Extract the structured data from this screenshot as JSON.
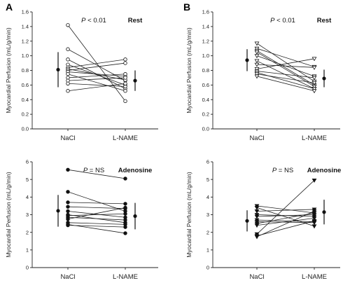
{
  "figure": {
    "panel_labels": [
      "A",
      "B"
    ]
  },
  "chart_data": [
    {
      "id": "A-rest",
      "panel": "A",
      "type": "scatter",
      "ylabel": "Myocardial Perfusion (mL/g/min)",
      "condition": "Rest",
      "p_italic": "P",
      "p_rest": " < 0.01",
      "categories": [
        "NaCl",
        "L-NAME"
      ],
      "ylim": [
        0,
        1.6
      ],
      "yticks": [
        0.0,
        0.2,
        0.4,
        0.6,
        0.8,
        1.0,
        1.2,
        1.4,
        1.6
      ],
      "marker": "circle-open",
      "pairs": [
        [
          1.42,
          0.38
        ],
        [
          1.09,
          0.66
        ],
        [
          0.95,
          0.55
        ],
        [
          0.88,
          0.6
        ],
        [
          0.84,
          0.95
        ],
        [
          0.82,
          0.67
        ],
        [
          0.8,
          0.9
        ],
        [
          0.78,
          0.72
        ],
        [
          0.75,
          0.52
        ],
        [
          0.7,
          0.75
        ],
        [
          0.66,
          0.7
        ],
        [
          0.62,
          0.58
        ],
        [
          0.52,
          0.62
        ]
      ],
      "summary": [
        {
          "mean": 0.81,
          "sd": 0.24
        },
        {
          "mean": 0.66,
          "sd": 0.14
        }
      ]
    },
    {
      "id": "B-rest",
      "panel": "B",
      "type": "scatter",
      "ylabel": "Myocardial Perfusion (mL/g/min)",
      "condition": "Rest",
      "p_italic": "P",
      "p_rest": " < 0.01",
      "categories": [
        "NaCl",
        "L-NAME"
      ],
      "ylim": [
        0,
        1.6
      ],
      "yticks": [
        0.0,
        0.2,
        0.4,
        0.6,
        0.8,
        1.0,
        1.2,
        1.4,
        1.6
      ],
      "marker": "triangle-down-open",
      "pairs": [
        [
          1.17,
          0.65
        ],
        [
          1.1,
          0.85
        ],
        [
          1.07,
          0.6
        ],
        [
          1.05,
          0.58
        ],
        [
          1.0,
          0.72
        ],
        [
          0.93,
          0.55
        ],
        [
          0.88,
          0.84
        ],
        [
          0.82,
          0.96
        ],
        [
          0.79,
          0.7
        ],
        [
          0.77,
          0.55
        ],
        [
          0.75,
          0.63
        ],
        [
          0.72,
          0.52
        ]
      ],
      "summary": [
        {
          "mean": 0.94,
          "sd": 0.15
        },
        {
          "mean": 0.69,
          "sd": 0.12
        }
      ]
    },
    {
      "id": "A-adenosine",
      "panel": "A",
      "type": "scatter",
      "ylabel": "Myocardial Perfusion (mL/g/min)",
      "condition": "Adenosine",
      "p_italic": "P",
      "p_rest": " = NS",
      "categories": [
        "NaCl",
        "L-NAME"
      ],
      "ylim": [
        0,
        6
      ],
      "yticks": [
        0,
        1,
        2,
        3,
        4,
        5,
        6
      ],
      "marker": "circle-filled",
      "pairs": [
        [
          5.55,
          5.05
        ],
        [
          4.3,
          3.2
        ],
        [
          3.7,
          3.62
        ],
        [
          3.45,
          3.35
        ],
        [
          3.2,
          2.85
        ],
        [
          3.0,
          2.55
        ],
        [
          2.95,
          3.05
        ],
        [
          2.85,
          2.7
        ],
        [
          2.75,
          3.4
        ],
        [
          2.55,
          2.45
        ],
        [
          2.45,
          1.95
        ],
        [
          2.4,
          2.3
        ]
      ],
      "summary": [
        {
          "mean": 3.22,
          "sd": 0.9
        },
        {
          "mean": 2.92,
          "sd": 0.75
        }
      ]
    },
    {
      "id": "B-adenosine",
      "panel": "B",
      "type": "scatter",
      "ylabel": "Myocardial Perfusion (mL/g/min)",
      "condition": "Adenosine",
      "p_italic": "P",
      "p_rest": " = NS",
      "categories": [
        "NaCl",
        "L-NAME"
      ],
      "ylim": [
        0,
        6
      ],
      "yticks": [
        0,
        1,
        2,
        3,
        4,
        5,
        6
      ],
      "marker": "triangle-down-filled",
      "pairs": [
        [
          3.5,
          3.1
        ],
        [
          3.4,
          2.35
        ],
        [
          3.2,
          3.3
        ],
        [
          3.0,
          2.9
        ],
        [
          2.9,
          3.0
        ],
        [
          2.7,
          2.6
        ],
        [
          2.6,
          2.55
        ],
        [
          2.5,
          3.1
        ],
        [
          2.4,
          2.8
        ],
        [
          1.9,
          4.95
        ],
        [
          1.8,
          2.65
        ],
        [
          1.75,
          3.2
        ]
      ],
      "summary": [
        {
          "mean": 2.65,
          "sd": 0.6
        },
        {
          "mean": 3.15,
          "sd": 0.7
        }
      ]
    }
  ]
}
